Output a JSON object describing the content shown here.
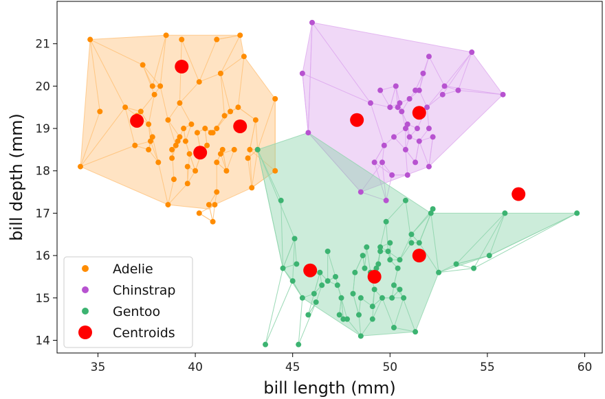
{
  "chart_data": {
    "type": "scatter",
    "title": "",
    "xlabel": "bill length (mm)",
    "ylabel": "bill depth (mm)",
    "xlim": [
      32.9,
      60.9
    ],
    "ylim": [
      13.7,
      22.0
    ],
    "xticks": [
      35,
      40,
      45,
      50,
      55,
      60
    ],
    "yticks": [
      14,
      15,
      16,
      17,
      18,
      19,
      20,
      21
    ],
    "grid": false,
    "legend_position": "lower-left",
    "series": [
      {
        "name": "Adelie",
        "color": "#ff8c00",
        "fill": "#ffc27a",
        "points": [
          [
            34.1,
            18.1
          ],
          [
            34.6,
            21.1
          ],
          [
            35.1,
            19.4
          ],
          [
            36.4,
            19.5
          ],
          [
            37.0,
            19.3
          ],
          [
            37.2,
            19.4
          ],
          [
            37.3,
            20.5
          ],
          [
            37.6,
            18.5
          ],
          [
            37.8,
            18.8
          ],
          [
            38.1,
            18.2
          ],
          [
            37.9,
            19.8
          ],
          [
            38.2,
            20.0
          ],
          [
            38.5,
            21.2
          ],
          [
            38.6,
            19.2
          ],
          [
            38.6,
            17.2
          ],
          [
            38.8,
            18.5
          ],
          [
            39.0,
            18.6
          ],
          [
            39.2,
            18.8
          ],
          [
            39.3,
            21.1
          ],
          [
            39.4,
            19.0
          ],
          [
            39.5,
            18.7
          ],
          [
            39.6,
            18.1
          ],
          [
            39.8,
            19.1
          ],
          [
            40.0,
            18.0
          ],
          [
            40.1,
            18.9
          ],
          [
            40.2,
            20.1
          ],
          [
            40.3,
            18.4
          ],
          [
            40.6,
            18.6
          ],
          [
            40.8,
            18.9
          ],
          [
            41.0,
            17.2
          ],
          [
            41.1,
            18.2
          ],
          [
            41.3,
            18.4
          ],
          [
            41.4,
            18.5
          ],
          [
            41.5,
            19.3
          ],
          [
            41.6,
            18.0
          ],
          [
            41.8,
            19.4
          ],
          [
            42.0,
            18.5
          ],
          [
            42.2,
            19.5
          ],
          [
            42.3,
            21.2
          ],
          [
            42.5,
            20.7
          ],
          [
            42.7,
            18.3
          ],
          [
            42.9,
            17.6
          ],
          [
            43.1,
            19.2
          ],
          [
            43.2,
            18.5
          ],
          [
            44.1,
            18.0
          ],
          [
            44.1,
            19.7
          ],
          [
            40.5,
            19.0
          ],
          [
            39.7,
            18.4
          ],
          [
            41.1,
            17.5
          ],
          [
            40.9,
            16.8
          ],
          [
            38.9,
            17.8
          ],
          [
            36.9,
            18.6
          ],
          [
            37.7,
            18.7
          ],
          [
            39.2,
            19.6
          ],
          [
            41.1,
            21.1
          ],
          [
            37.8,
            20.0
          ],
          [
            40.7,
            17.2
          ],
          [
            38.8,
            18.3
          ],
          [
            41.1,
            19.0
          ],
          [
            40.2,
            17.0
          ],
          [
            42.8,
            18.5
          ],
          [
            39.6,
            17.7
          ],
          [
            41.3,
            20.3
          ],
          [
            40.9,
            18.9
          ],
          [
            37.6,
            19.1
          ],
          [
            39.1,
            18.7
          ]
        ],
        "outline": [
          [
            34.1,
            18.1
          ],
          [
            34.6,
            21.1
          ],
          [
            38.5,
            21.2
          ],
          [
            42.3,
            21.2
          ],
          [
            42.5,
            20.7
          ],
          [
            44.1,
            19.7
          ],
          [
            44.1,
            18.0
          ],
          [
            42.9,
            17.6
          ],
          [
            41.0,
            17.2
          ],
          [
            40.7,
            17.1
          ],
          [
            38.6,
            17.2
          ],
          [
            34.1,
            18.1
          ]
        ],
        "centroids": [
          [
            37.0,
            19.18
          ],
          [
            39.3,
            20.46
          ],
          [
            40.25,
            18.43
          ],
          [
            42.3,
            19.05
          ]
        ]
      },
      {
        "name": "Chinstrap",
        "color": "#b752d0",
        "fill": "#dda9ee",
        "points": [
          [
            46.0,
            21.5
          ],
          [
            45.5,
            20.3
          ],
          [
            45.8,
            18.9
          ],
          [
            48.5,
            17.5
          ],
          [
            49.0,
            19.6
          ],
          [
            49.2,
            18.2
          ],
          [
            49.5,
            19.9
          ],
          [
            49.7,
            18.6
          ],
          [
            50.0,
            19.5
          ],
          [
            50.2,
            18.8
          ],
          [
            50.3,
            20.0
          ],
          [
            50.5,
            19.6
          ],
          [
            50.6,
            19.4
          ],
          [
            50.8,
            18.5
          ],
          [
            50.9,
            19.1
          ],
          [
            51.0,
            18.8
          ],
          [
            51.3,
            19.9
          ],
          [
            51.4,
            19.0
          ],
          [
            51.5,
            18.7
          ],
          [
            51.7,
            20.3
          ],
          [
            51.9,
            19.5
          ],
          [
            52.0,
            18.1
          ],
          [
            52.0,
            20.7
          ],
          [
            52.2,
            18.8
          ],
          [
            52.7,
            19.8
          ],
          [
            52.8,
            20.0
          ],
          [
            53.5,
            19.9
          ],
          [
            54.2,
            20.8
          ],
          [
            55.8,
            19.8
          ],
          [
            49.6,
            18.2
          ],
          [
            50.1,
            17.9
          ],
          [
            51.3,
            18.2
          ],
          [
            50.8,
            19.0
          ],
          [
            51.0,
            19.7
          ],
          [
            50.4,
            19.5
          ],
          [
            49.8,
            17.3
          ],
          [
            51.5,
            19.9
          ],
          [
            50.9,
            17.9
          ],
          [
            52.0,
            19.0
          ]
        ],
        "outline": [
          [
            46.0,
            21.5
          ],
          [
            54.2,
            20.8
          ],
          [
            55.8,
            19.8
          ],
          [
            52.0,
            18.1
          ],
          [
            48.5,
            17.5
          ],
          [
            45.8,
            18.9
          ],
          [
            45.5,
            20.3
          ],
          [
            46.0,
            21.5
          ]
        ],
        "centroids": [
          [
            48.3,
            19.2
          ],
          [
            51.5,
            19.37
          ]
        ]
      },
      {
        "name": "Gentoo",
        "color": "#3cb371",
        "fill": "#8fd5ad",
        "points": [
          [
            43.2,
            18.5
          ],
          [
            44.4,
            17.3
          ],
          [
            44.5,
            15.7
          ],
          [
            45.0,
            15.4
          ],
          [
            45.1,
            16.4
          ],
          [
            45.2,
            15.8
          ],
          [
            45.5,
            15.0
          ],
          [
            45.8,
            14.6
          ],
          [
            46.1,
            15.1
          ],
          [
            46.2,
            14.9
          ],
          [
            46.5,
            15.3
          ],
          [
            46.8,
            15.4
          ],
          [
            46.8,
            16.1
          ],
          [
            47.3,
            15.3
          ],
          [
            47.5,
            15.0
          ],
          [
            47.8,
            14.5
          ],
          [
            48.1,
            15.1
          ],
          [
            48.2,
            15.6
          ],
          [
            48.4,
            14.6
          ],
          [
            48.5,
            15.0
          ],
          [
            48.5,
            14.1
          ],
          [
            48.7,
            15.7
          ],
          [
            48.8,
            16.2
          ],
          [
            49.0,
            15.6
          ],
          [
            49.1,
            14.8
          ],
          [
            49.2,
            15.2
          ],
          [
            49.4,
            15.8
          ],
          [
            49.5,
            16.1
          ],
          [
            49.6,
            15.0
          ],
          [
            49.8,
            16.8
          ],
          [
            49.9,
            16.1
          ],
          [
            50.0,
            15.9
          ],
          [
            50.1,
            15.0
          ],
          [
            50.2,
            14.3
          ],
          [
            50.4,
            15.7
          ],
          [
            50.5,
            15.9
          ],
          [
            50.7,
            15.0
          ],
          [
            50.8,
            17.3
          ],
          [
            51.1,
            16.5
          ],
          [
            51.3,
            14.2
          ],
          [
            51.5,
            16.3
          ],
          [
            52.1,
            17.0
          ],
          [
            52.2,
            17.1
          ],
          [
            52.5,
            15.6
          ],
          [
            53.4,
            15.8
          ],
          [
            54.3,
            15.7
          ],
          [
            55.1,
            16.0
          ],
          [
            55.9,
            17.0
          ],
          [
            59.6,
            17.0
          ],
          [
            45.3,
            13.9
          ],
          [
            46.4,
            15.6
          ],
          [
            47.4,
            14.6
          ],
          [
            47.6,
            14.5
          ],
          [
            48.6,
            16.0
          ],
          [
            49.1,
            14.5
          ],
          [
            49.5,
            16.2
          ],
          [
            50.0,
            16.3
          ],
          [
            50.5,
            15.2
          ],
          [
            51.1,
            16.3
          ],
          [
            43.6,
            13.9
          ],
          [
            49.3,
            15.7
          ],
          [
            50.2,
            15.3
          ],
          [
            47.2,
            15.5
          ]
        ],
        "outline": [
          [
            43.2,
            18.5
          ],
          [
            45.8,
            18.9
          ],
          [
            52.1,
            17.0
          ],
          [
            59.6,
            17.0
          ],
          [
            55.1,
            16.0
          ],
          [
            52.5,
            15.6
          ],
          [
            51.3,
            14.2
          ],
          [
            48.5,
            14.1
          ],
          [
            45.5,
            15.0
          ],
          [
            44.5,
            15.7
          ],
          [
            43.2,
            18.5
          ]
        ],
        "centroids": [
          [
            45.9,
            15.65
          ],
          [
            49.2,
            15.5
          ],
          [
            51.5,
            16.0
          ],
          [
            56.6,
            17.45
          ]
        ]
      }
    ],
    "centroid_series": {
      "name": "Centroids",
      "color": "#ff0000"
    }
  }
}
